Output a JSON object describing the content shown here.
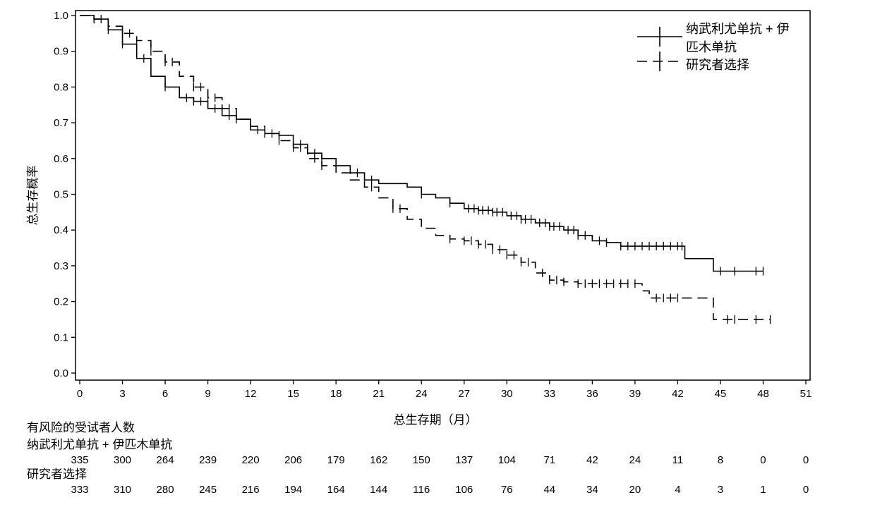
{
  "chart_data": {
    "type": "line",
    "subtype": "kaplan-meier",
    "ylabel": "总生存概率",
    "xlabel": "总生存期（月）",
    "xlim": [
      0,
      51
    ],
    "ylim": [
      0,
      1.0
    ],
    "x_ticks": [
      "0",
      "3",
      "6",
      "9",
      "12",
      "15",
      "18",
      "21",
      "24",
      "27",
      "30",
      "33",
      "36",
      "39",
      "42",
      "45",
      "48",
      "51"
    ],
    "y_ticks": [
      "0.0",
      "0.1",
      "0.2",
      "0.3",
      "0.4",
      "0.5",
      "0.6",
      "0.7",
      "0.8",
      "0.9",
      "1.0"
    ],
    "grid": false,
    "legend_position": "top-right",
    "legend_lines": [
      "纳武利尤单抗 + 伊",
      "匹木单抗",
      "研究者选择"
    ],
    "series": [
      {
        "name": "纳武利尤单抗 + 伊匹木单抗",
        "line_style": "solid",
        "points": [
          [
            0,
            1.0
          ],
          [
            1,
            0.99
          ],
          [
            2,
            0.96
          ],
          [
            3,
            0.92
          ],
          [
            4,
            0.88
          ],
          [
            5,
            0.83
          ],
          [
            6,
            0.8
          ],
          [
            7,
            0.77
          ],
          [
            8,
            0.76
          ],
          [
            9,
            0.74
          ],
          [
            10,
            0.72
          ],
          [
            11,
            0.71
          ],
          [
            12,
            0.68
          ],
          [
            13,
            0.67
          ],
          [
            14,
            0.665
          ],
          [
            15,
            0.64
          ],
          [
            16,
            0.615
          ],
          [
            17,
            0.6
          ],
          [
            18,
            0.58
          ],
          [
            19,
            0.56
          ],
          [
            20,
            0.54
          ],
          [
            21,
            0.53
          ],
          [
            22,
            0.53
          ],
          [
            23,
            0.52
          ],
          [
            24,
            0.5
          ],
          [
            25,
            0.49
          ],
          [
            26,
            0.475
          ],
          [
            27,
            0.46
          ],
          [
            28,
            0.455
          ],
          [
            29,
            0.45
          ],
          [
            30,
            0.44
          ],
          [
            31,
            0.43
          ],
          [
            32,
            0.42
          ],
          [
            33,
            0.41
          ],
          [
            34,
            0.4
          ],
          [
            35,
            0.385
          ],
          [
            36,
            0.37
          ],
          [
            37,
            0.365
          ],
          [
            38,
            0.355
          ],
          [
            42.5,
            0.355
          ],
          [
            42.5,
            0.32
          ],
          [
            44.5,
            0.32
          ],
          [
            44.5,
            0.285
          ],
          [
            48,
            0.285
          ]
        ],
        "censor_x": [
          1,
          1.5,
          2,
          3,
          4.5,
          6,
          7.5,
          8,
          8.5,
          9.5,
          10.5,
          12.5,
          13,
          13.5,
          14,
          15,
          15.5,
          16.5,
          17,
          19.5,
          20.5,
          24,
          26,
          27.3,
          27.7,
          28,
          28.3,
          28.7,
          29,
          29.3,
          29.7,
          30.3,
          30.7,
          31,
          31.3,
          31.7,
          32.3,
          32.7,
          33,
          33.3,
          33.7,
          34.3,
          34.7,
          35,
          35.5,
          36.5,
          37,
          38,
          38.5,
          39,
          39.5,
          40,
          40.5,
          41,
          41.5,
          42,
          42.3,
          45,
          46,
          47.5,
          48
        ]
      },
      {
        "name": "研究者选择",
        "line_style": "dashed",
        "points": [
          [
            0,
            1.0
          ],
          [
            1,
            0.99
          ],
          [
            2,
            0.97
          ],
          [
            3,
            0.95
          ],
          [
            4,
            0.93
          ],
          [
            5,
            0.9
          ],
          [
            6,
            0.87
          ],
          [
            7,
            0.83
          ],
          [
            8,
            0.8
          ],
          [
            9,
            0.77
          ],
          [
            10,
            0.74
          ],
          [
            11,
            0.71
          ],
          [
            12,
            0.69
          ],
          [
            13,
            0.67
          ],
          [
            14,
            0.65
          ],
          [
            15,
            0.63
          ],
          [
            16,
            0.6
          ],
          [
            17,
            0.58
          ],
          [
            18,
            0.56
          ],
          [
            19,
            0.54
          ],
          [
            20,
            0.52
          ],
          [
            21,
            0.49
          ],
          [
            22,
            0.46
          ],
          [
            23,
            0.43
          ],
          [
            24,
            0.405
          ],
          [
            25,
            0.385
          ],
          [
            26,
            0.375
          ],
          [
            27,
            0.37
          ],
          [
            28,
            0.36
          ],
          [
            29,
            0.345
          ],
          [
            30,
            0.33
          ],
          [
            31,
            0.31
          ],
          [
            32,
            0.28
          ],
          [
            33,
            0.26
          ],
          [
            34,
            0.255
          ],
          [
            35,
            0.25
          ],
          [
            38.5,
            0.25
          ],
          [
            39.5,
            0.23
          ],
          [
            40,
            0.21
          ],
          [
            44.5,
            0.21
          ],
          [
            44.5,
            0.15
          ],
          [
            48.5,
            0.15
          ]
        ],
        "censor_x": [
          1,
          2,
          3,
          3.5,
          4,
          5,
          6,
          6.5,
          8,
          8.5,
          9,
          9.5,
          10,
          10.5,
          11,
          12,
          13,
          14,
          15,
          15.5,
          16.5,
          17,
          20.5,
          22,
          22.5,
          26,
          27,
          27.5,
          28,
          28.5,
          29,
          29.5,
          30,
          30.5,
          31,
          31.5,
          32.5,
          33,
          33.5,
          34,
          35,
          35.5,
          36,
          36.5,
          37,
          37.5,
          38,
          38.5,
          39,
          40.5,
          41,
          41.5,
          42,
          45.5,
          46,
          47.5,
          48.5
        ]
      }
    ]
  },
  "risk_table": {
    "title": "有风险的受试者人数",
    "rows": [
      {
        "label": "纳武利尤单抗 + 伊匹木单抗",
        "values": [
          "335",
          "300",
          "264",
          "239",
          "220",
          "206",
          "179",
          "162",
          "150",
          "137",
          "104",
          "71",
          "42",
          "24",
          "11",
          "8",
          "0",
          "0"
        ]
      },
      {
        "label": "研究者选择",
        "values": [
          "333",
          "310",
          "280",
          "245",
          "216",
          "194",
          "164",
          "144",
          "116",
          "106",
          "76",
          "44",
          "34",
          "20",
          "4",
          "3",
          "1",
          "0"
        ]
      }
    ]
  }
}
